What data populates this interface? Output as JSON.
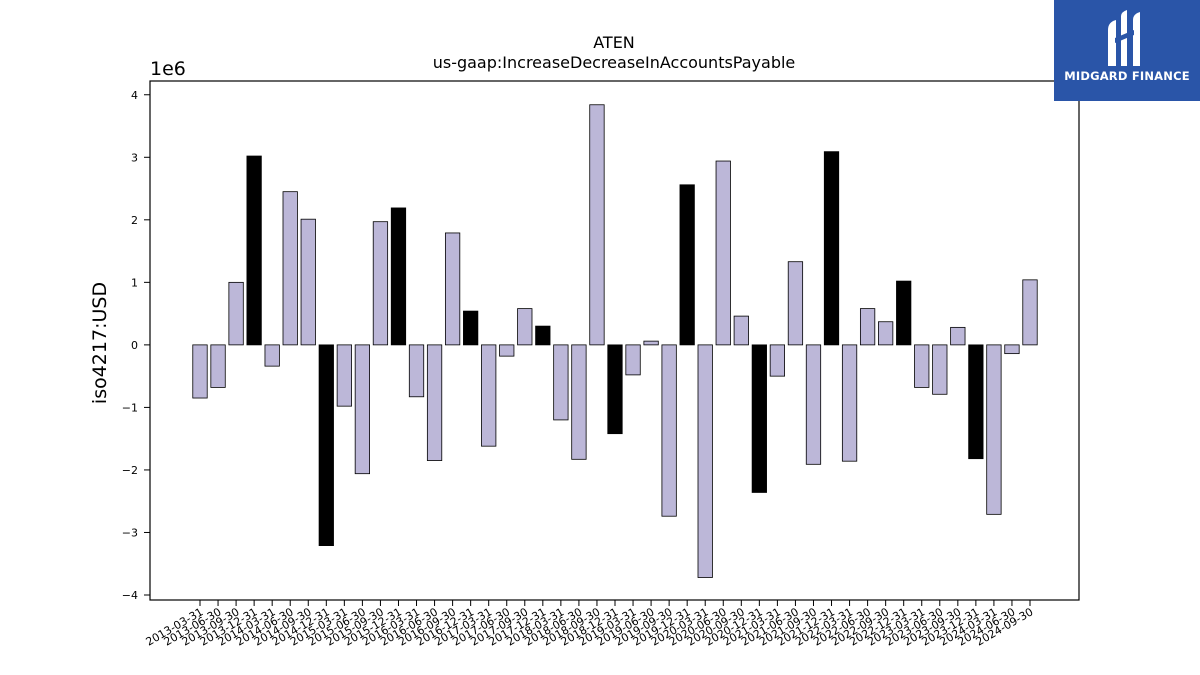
{
  "brand": {
    "name": "MIDGARD FINANCE",
    "bg_color": "#2a55a8"
  },
  "chart_data": {
    "type": "bar",
    "title": "ATEN",
    "subtitle": "us-gaap:IncreaseDecreaseInAccountsPayable",
    "ylabel": "iso4217:USD",
    "y_offset_label": "1e6",
    "ylim": [
      -4.08,
      4.22
    ],
    "yticks": [
      -4,
      -3,
      -2,
      -1,
      0,
      1,
      2,
      3,
      4
    ],
    "ytick_labels": [
      "−4",
      "−3",
      "−2",
      "−1",
      "0",
      "1",
      "2",
      "3",
      "4"
    ],
    "grid": false,
    "colors": {
      "default": "#bcb7d8",
      "highlight": "#000000",
      "edge": "#000000"
    },
    "categories": [
      "2013-03-31",
      "2013-06-30",
      "2013-09-30",
      "2013-12-31",
      "2014-03-31",
      "2014-06-30",
      "2014-09-30",
      "2014-12-31",
      "2015-03-31",
      "2015-06-30",
      "2015-09-30",
      "2015-12-31",
      "2016-03-31",
      "2016-06-30",
      "2016-09-30",
      "2016-12-31",
      "2017-03-31",
      "2017-06-30",
      "2017-09-30",
      "2017-12-31",
      "2018-03-31",
      "2018-06-30",
      "2018-09-30",
      "2018-12-31",
      "2019-03-31",
      "2019-06-30",
      "2019-09-30",
      "2019-12-31",
      "2020-03-31",
      "2020-06-30",
      "2020-09-30",
      "2020-12-31",
      "2021-03-31",
      "2021-06-30",
      "2021-09-30",
      "2021-12-31",
      "2022-03-31",
      "2022-06-30",
      "2022-09-30",
      "2022-12-31",
      "2023-03-31",
      "2023-06-30",
      "2023-09-30",
      "2023-12-31",
      "2024-03-31",
      "2024-06-30",
      "2024-09-30"
    ],
    "values": [
      -0.85,
      -0.68,
      1.0,
      3.02,
      -0.34,
      2.45,
      2.01,
      -3.21,
      -0.98,
      -2.06,
      1.97,
      2.19,
      -0.83,
      -1.85,
      1.79,
      0.54,
      -1.62,
      -0.18,
      0.58,
      0.3,
      -1.2,
      -1.83,
      3.84,
      -1.42,
      -0.48,
      0.06,
      -2.74,
      2.56,
      -3.72,
      2.94,
      0.46,
      -2.36,
      -0.5,
      1.33,
      -1.91,
      3.09,
      -1.86,
      0.58,
      0.37,
      1.02,
      -0.68,
      -0.79,
      0.28,
      -1.82,
      -2.71,
      -0.14,
      1.04
    ],
    "highlighted": [
      false,
      false,
      false,
      true,
      false,
      false,
      false,
      true,
      false,
      false,
      false,
      true,
      false,
      false,
      false,
      true,
      false,
      false,
      false,
      true,
      false,
      false,
      false,
      true,
      false,
      false,
      false,
      true,
      false,
      false,
      false,
      true,
      false,
      false,
      false,
      true,
      false,
      false,
      false,
      true,
      false,
      false,
      false,
      true,
      false,
      false,
      false
    ]
  }
}
